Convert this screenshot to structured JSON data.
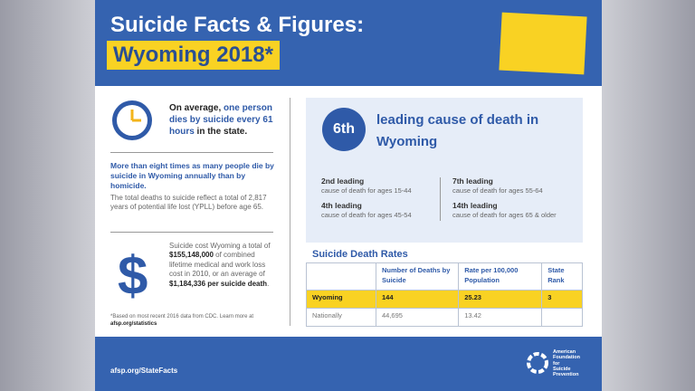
{
  "header": {
    "title": "Suicide Facts & Figures:",
    "subtitle": "Wyoming 2018*"
  },
  "left": {
    "stat1": [
      "On average, ",
      "one person dies by suicide every 61 hours",
      " in the state."
    ],
    "stat2": "More than eight times as many people die by suicide in Wyoming annually than by homicide.",
    "stat3": "The total deaths to suicide reflect a total of 2,817 years of potential life lost (YPLL) before age 65.",
    "icon": "$",
    "cost": [
      "Suicide cost Wyoming a total of ",
      "$155,148,000",
      " of combined lifetime medical and work loss cost in 2010, or an average of ",
      "$1,184,336 per suicide death",
      "."
    ],
    "footnote": [
      "*Based on most recent 2016 data from CDC. Learn more at ",
      "afsp.org/statistics"
    ]
  },
  "right": {
    "rank": "6th",
    "rank_text": "leading cause of death in Wyoming",
    "ages": [
      {
        "rank": "2nd leading",
        "desc": "cause of death for ages 15-44"
      },
      {
        "rank": "7th leading",
        "desc": "cause of death for ages 55-64"
      },
      {
        "rank": "4th leading",
        "desc": "cause of death for ages 45-54"
      },
      {
        "rank": "14th leading",
        "desc": "cause of death for ages 65 & older"
      }
    ],
    "table": {
      "title": "Suicide Death Rates",
      "columns": [
        "Number of Deaths by Suicide",
        "Rate per 100,000 Population",
        "State Rank"
      ],
      "rows": [
        [
          "Wyoming",
          "144",
          "25.23",
          "3"
        ],
        [
          "Nationally",
          "44,695",
          "13.42"
        ]
      ]
    }
  },
  "footer": {
    "url": "afsp.org/StateFacts",
    "logo": [
      "American",
      "Foundation",
      "for",
      "Suicide",
      "Prevention"
    ]
  }
}
